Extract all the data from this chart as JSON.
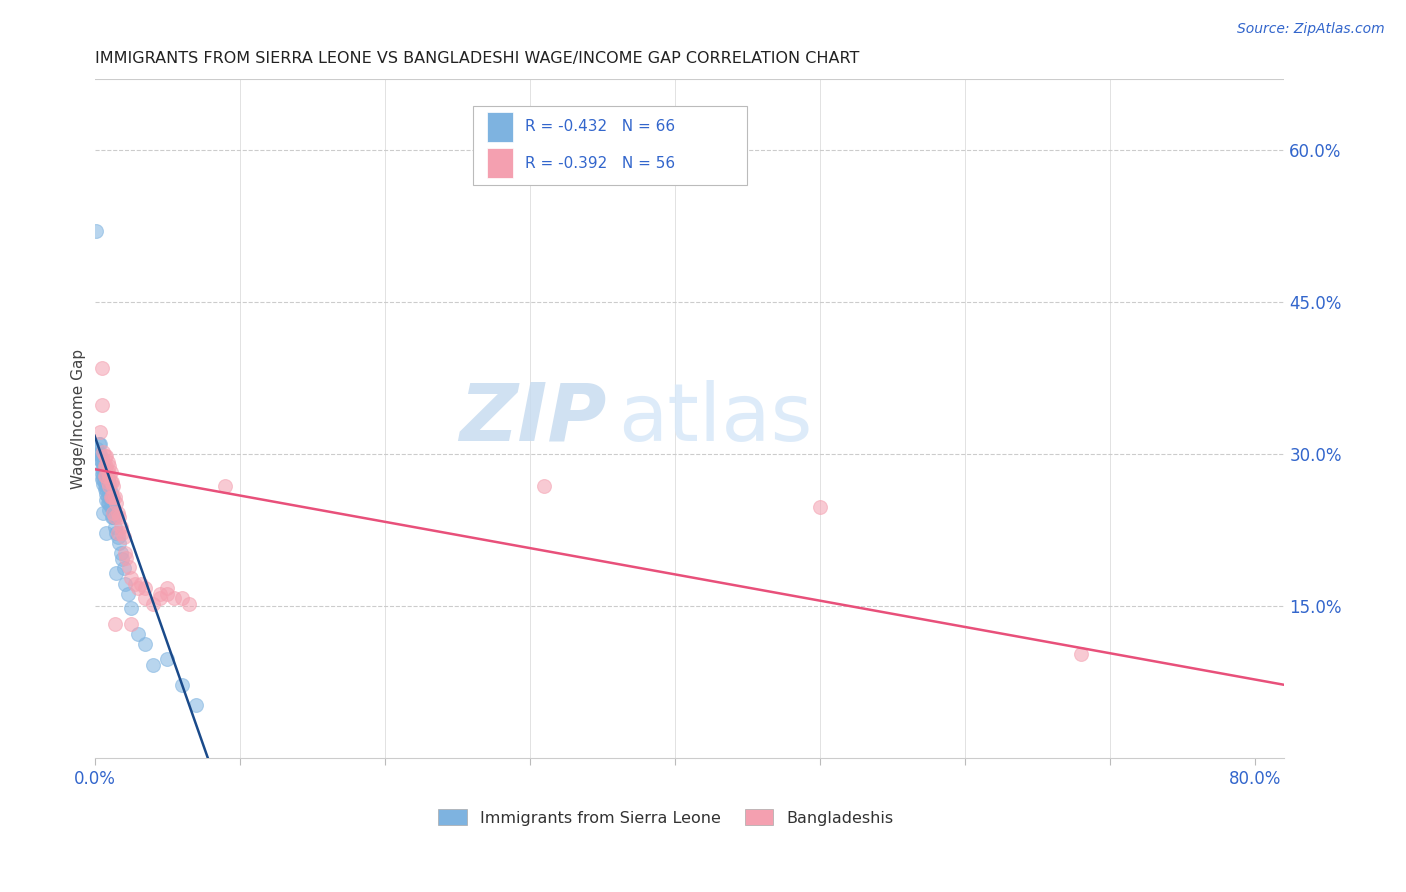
{
  "title": "IMMIGRANTS FROM SIERRA LEONE VS BANGLADESHI WAGE/INCOME GAP CORRELATION CHART",
  "source": "Source: ZipAtlas.com",
  "ylabel": "Wage/Income Gap",
  "yticks_right": [
    "60.0%",
    "45.0%",
    "30.0%",
    "15.0%"
  ],
  "yticks_right_vals": [
    0.6,
    0.45,
    0.3,
    0.15
  ],
  "xticks_labels": [
    "0.0%",
    "",
    "",
    "",
    "",
    "",
    "",
    "",
    "80.0%"
  ],
  "xticks_vals": [
    0.0,
    0.1,
    0.2,
    0.3,
    0.4,
    0.5,
    0.6,
    0.7,
    0.8
  ],
  "legend_1_R": "-0.432",
  "legend_1_N": "66",
  "legend_2_R": "-0.392",
  "legend_2_N": "56",
  "legend_label_1": "Immigrants from Sierra Leone",
  "legend_label_2": "Bangladeshis",
  "color_blue": "#7EB3E0",
  "color_pink": "#F4A0B0",
  "color_blue_line": "#1A4A8A",
  "color_pink_line": "#E8507A",
  "color_legend_text": "#3366CC",
  "watermark_zip": "ZIP",
  "watermark_atlas": "atlas",
  "bg_color": "#FFFFFF",
  "scatter_blue": [
    [
      0.001,
      0.52
    ],
    [
      0.002,
      0.305
    ],
    [
      0.003,
      0.31
    ],
    [
      0.003,
      0.3
    ],
    [
      0.003,
      0.295
    ],
    [
      0.004,
      0.31
    ],
    [
      0.004,
      0.3
    ],
    [
      0.004,
      0.295
    ],
    [
      0.005,
      0.295
    ],
    [
      0.005,
      0.285
    ],
    [
      0.005,
      0.28
    ],
    [
      0.005,
      0.275
    ],
    [
      0.006,
      0.29
    ],
    [
      0.006,
      0.285
    ],
    [
      0.006,
      0.28
    ],
    [
      0.006,
      0.275
    ],
    [
      0.006,
      0.27
    ],
    [
      0.007,
      0.285
    ],
    [
      0.007,
      0.28
    ],
    [
      0.007,
      0.275
    ],
    [
      0.007,
      0.27
    ],
    [
      0.007,
      0.265
    ],
    [
      0.008,
      0.28
    ],
    [
      0.008,
      0.275
    ],
    [
      0.008,
      0.27
    ],
    [
      0.008,
      0.265
    ],
    [
      0.008,
      0.26
    ],
    [
      0.008,
      0.255
    ],
    [
      0.009,
      0.275
    ],
    [
      0.009,
      0.27
    ],
    [
      0.009,
      0.265
    ],
    [
      0.009,
      0.258
    ],
    [
      0.009,
      0.252
    ],
    [
      0.01,
      0.27
    ],
    [
      0.01,
      0.265
    ],
    [
      0.01,
      0.26
    ],
    [
      0.01,
      0.252
    ],
    [
      0.01,
      0.245
    ],
    [
      0.011,
      0.262
    ],
    [
      0.011,
      0.255
    ],
    [
      0.011,
      0.248
    ],
    [
      0.012,
      0.255
    ],
    [
      0.012,
      0.248
    ],
    [
      0.012,
      0.238
    ],
    [
      0.013,
      0.248
    ],
    [
      0.013,
      0.238
    ],
    [
      0.014,
      0.238
    ],
    [
      0.014,
      0.228
    ],
    [
      0.015,
      0.222
    ],
    [
      0.015,
      0.182
    ],
    [
      0.016,
      0.218
    ],
    [
      0.017,
      0.212
    ],
    [
      0.018,
      0.202
    ],
    [
      0.019,
      0.196
    ],
    [
      0.02,
      0.187
    ],
    [
      0.021,
      0.172
    ],
    [
      0.023,
      0.162
    ],
    [
      0.025,
      0.148
    ],
    [
      0.03,
      0.122
    ],
    [
      0.035,
      0.112
    ],
    [
      0.04,
      0.092
    ],
    [
      0.05,
      0.098
    ],
    [
      0.006,
      0.242
    ],
    [
      0.008,
      0.222
    ],
    [
      0.06,
      0.072
    ],
    [
      0.07,
      0.052
    ]
  ],
  "scatter_pink": [
    [
      0.004,
      0.322
    ],
    [
      0.005,
      0.385
    ],
    [
      0.005,
      0.348
    ],
    [
      0.006,
      0.302
    ],
    [
      0.007,
      0.298
    ],
    [
      0.007,
      0.288
    ],
    [
      0.007,
      0.278
    ],
    [
      0.008,
      0.298
    ],
    [
      0.008,
      0.288
    ],
    [
      0.008,
      0.278
    ],
    [
      0.009,
      0.292
    ],
    [
      0.009,
      0.282
    ],
    [
      0.009,
      0.272
    ],
    [
      0.01,
      0.288
    ],
    [
      0.01,
      0.278
    ],
    [
      0.01,
      0.268
    ],
    [
      0.011,
      0.282
    ],
    [
      0.011,
      0.272
    ],
    [
      0.011,
      0.258
    ],
    [
      0.012,
      0.272
    ],
    [
      0.012,
      0.258
    ],
    [
      0.013,
      0.268
    ],
    [
      0.013,
      0.258
    ],
    [
      0.013,
      0.242
    ],
    [
      0.014,
      0.258
    ],
    [
      0.014,
      0.238
    ],
    [
      0.015,
      0.252
    ],
    [
      0.016,
      0.242
    ],
    [
      0.016,
      0.222
    ],
    [
      0.017,
      0.238
    ],
    [
      0.018,
      0.228
    ],
    [
      0.019,
      0.222
    ],
    [
      0.02,
      0.218
    ],
    [
      0.021,
      0.202
    ],
    [
      0.022,
      0.197
    ],
    [
      0.024,
      0.188
    ],
    [
      0.025,
      0.178
    ],
    [
      0.028,
      0.172
    ],
    [
      0.03,
      0.168
    ],
    [
      0.032,
      0.172
    ],
    [
      0.035,
      0.168
    ],
    [
      0.035,
      0.158
    ],
    [
      0.04,
      0.152
    ],
    [
      0.045,
      0.162
    ],
    [
      0.045,
      0.158
    ],
    [
      0.05,
      0.168
    ],
    [
      0.05,
      0.162
    ],
    [
      0.055,
      0.158
    ],
    [
      0.06,
      0.158
    ],
    [
      0.065,
      0.152
    ],
    [
      0.09,
      0.268
    ],
    [
      0.31,
      0.268
    ],
    [
      0.5,
      0.248
    ],
    [
      0.68,
      0.102
    ],
    [
      0.014,
      0.132
    ],
    [
      0.025,
      0.132
    ]
  ],
  "xlim": [
    0.0,
    0.82
  ],
  "ylim": [
    0.0,
    0.67
  ],
  "blue_line_x": [
    0.0,
    0.078
  ],
  "blue_line_y": [
    0.318,
    0.0
  ],
  "pink_line_x": [
    0.0,
    0.82
  ],
  "pink_line_y": [
    0.285,
    0.072
  ]
}
